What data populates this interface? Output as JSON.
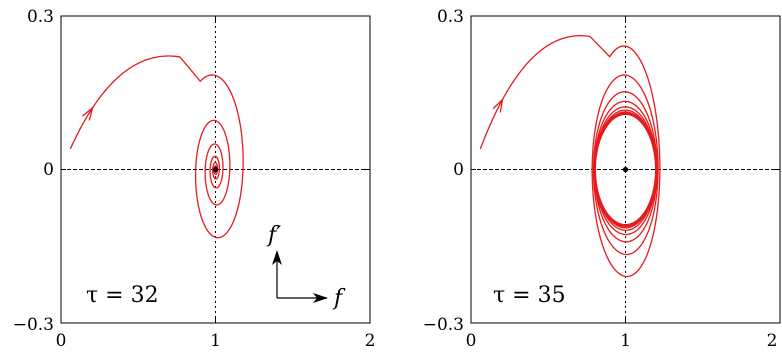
{
  "chart_data": [
    {
      "type": "line",
      "title": "",
      "annotation": "τ = 32",
      "xlim": [
        0,
        2
      ],
      "ylim": [
        -0.3,
        0.3
      ],
      "x_ticks": [
        "0",
        "1",
        "2"
      ],
      "y_ticks": [
        "−0.3",
        "0",
        "0.3"
      ],
      "fixed_point": {
        "x": 1,
        "y": 0
      },
      "trajectory": {
        "behavior": "spiral-in",
        "start": {
          "x": 0.06,
          "y": 0.04
        },
        "peak": {
          "x": 0.77,
          "y": 0.22
        },
        "center": {
          "x": 1.0,
          "y": 0.0
        },
        "decay": 0.25
      },
      "color": "#e41a1c"
    },
    {
      "type": "line",
      "title": "",
      "annotation": "τ = 35",
      "xlim": [
        0,
        2
      ],
      "ylim": [
        -0.3,
        0.3
      ],
      "x_ticks": [
        "0",
        "1",
        "2"
      ],
      "y_ticks": [
        "−0.3",
        "0",
        "0.3"
      ],
      "fixed_point": {
        "x": 1,
        "y": 0
      },
      "trajectory": {
        "behavior": "limit-cycle",
        "start": {
          "x": 0.06,
          "y": 0.04
        },
        "peak": {
          "x": 0.77,
          "y": 0.26
        },
        "center": {
          "x": 1.0,
          "y": 0.0
        },
        "limit_cycle": {
          "x_min": 0.79,
          "x_max": 1.18,
          "y_min": -0.1,
          "y_max": 0.115
        }
      },
      "color": "#e41a1c"
    }
  ],
  "inset_axes": {
    "x_label": "f",
    "y_label": "f′"
  }
}
